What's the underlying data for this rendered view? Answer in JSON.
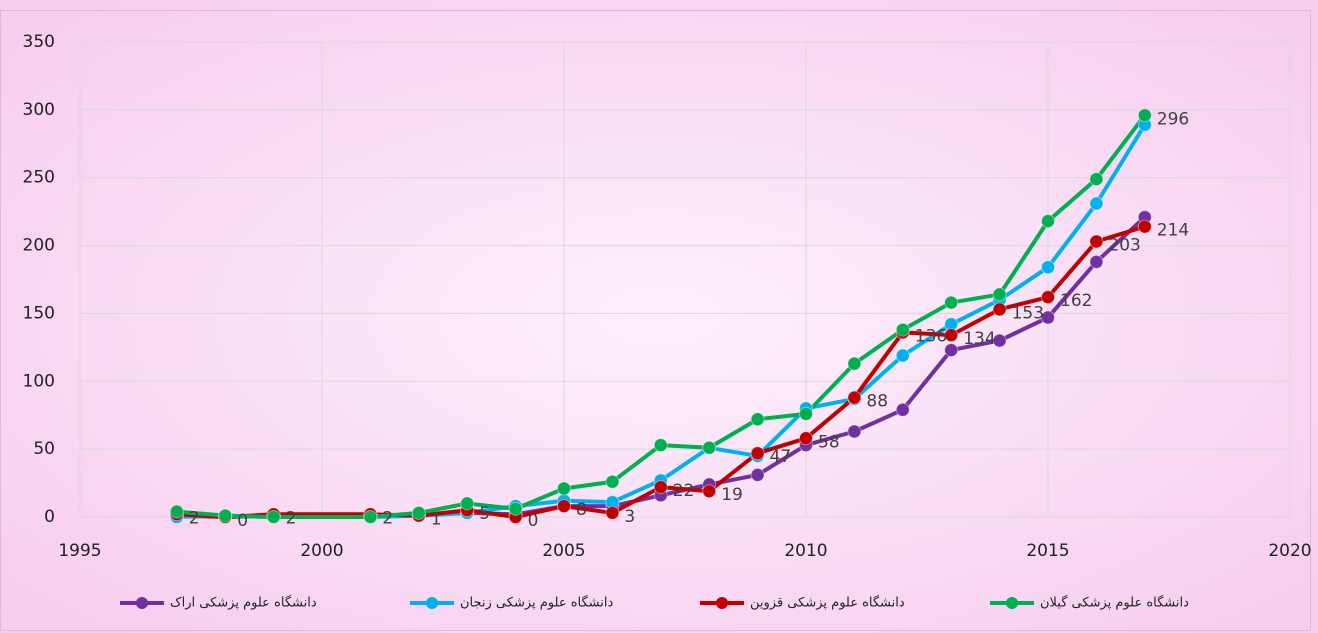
{
  "chart_data": {
    "type": "line",
    "x": [
      1997,
      1998,
      1999,
      2001,
      2002,
      2003,
      2004,
      2005,
      2006,
      2007,
      2008,
      2009,
      2010,
      2011,
      2012,
      2013,
      2014,
      2015,
      2016,
      2017
    ],
    "series": [
      {
        "name": "دانشگاه علوم پزشکی اراک",
        "color": "#7030a0",
        "values": [
          1,
          0,
          1,
          1,
          1,
          3,
          2,
          8,
          8,
          16,
          24,
          31,
          53,
          63,
          79,
          123,
          130,
          147,
          188,
          221
        ]
      },
      {
        "name": "دانشگاه علوم پزشکی زنجان",
        "color": "#00b0f0",
        "values": [
          0,
          1,
          0,
          0,
          1,
          3,
          8,
          12,
          11,
          27,
          51,
          45,
          80,
          87,
          119,
          142,
          160,
          184,
          231,
          289
        ]
      },
      {
        "name": "دانشگاه علوم پزشکی قزوین",
        "color": "#c00000",
        "data_labels": true,
        "values": [
          2,
          0,
          2,
          2,
          1,
          5,
          0,
          8,
          3,
          22,
          19,
          47,
          58,
          88,
          136,
          134,
          153,
          162,
          203,
          214
        ]
      },
      {
        "name": "دانشگاه علوم پزشکی گیلان",
        "color": "#00b050",
        "values": [
          4,
          1,
          0,
          0,
          3,
          10,
          6,
          21,
          26,
          53,
          51,
          72,
          76,
          113,
          138,
          158,
          164,
          218,
          249,
          296
        ],
        "value_labels": [
          null,
          null,
          null,
          null,
          null,
          null,
          null,
          null,
          null,
          null,
          null,
          null,
          null,
          null,
          null,
          null,
          null,
          null,
          null,
          "296"
        ]
      }
    ],
    "xlim": [
      1995,
      2020
    ],
    "xticks": [
      1995,
      2000,
      2005,
      2010,
      2015,
      2020
    ],
    "ylim": [
      0,
      350
    ],
    "yticks": [
      0,
      50,
      100,
      150,
      200,
      250,
      300,
      350
    ],
    "grid": true,
    "legend": "bottom"
  }
}
